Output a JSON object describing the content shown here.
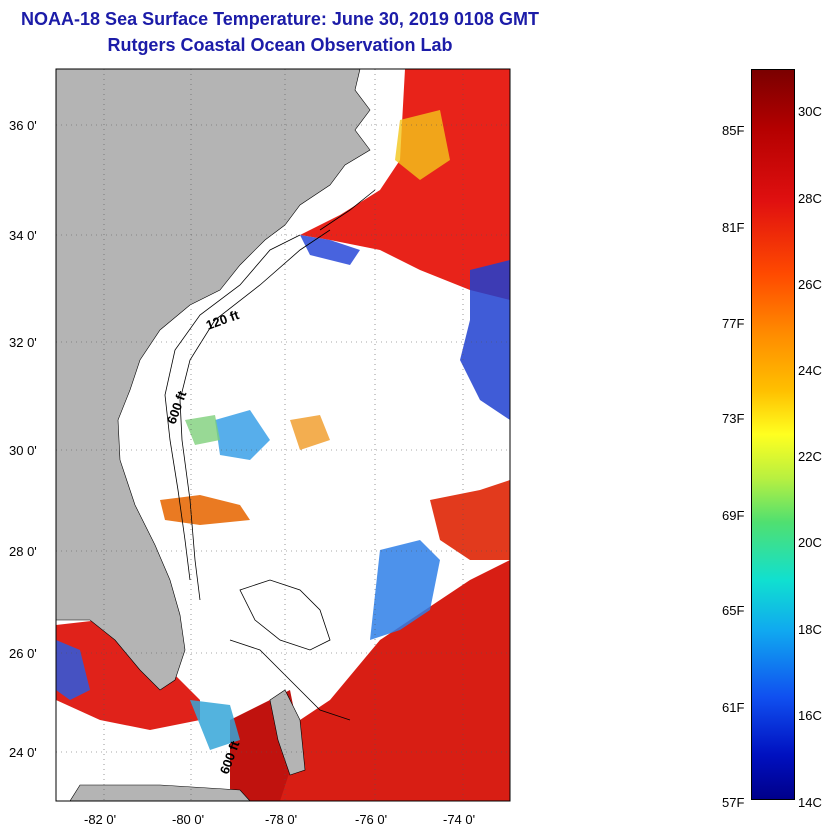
{
  "title": {
    "line1": "NOAA-18 Sea Surface Temperature:  June 30, 2019 0108 GMT",
    "line2": "Rutgers Coastal Ocean Observation Lab"
  },
  "map": {
    "lat_labels": [
      "36 0'",
      "34 0'",
      "32 0'",
      "30 0'",
      "28 0'",
      "26 0'",
      "24 0'"
    ],
    "lon_labels": [
      "-82 0'",
      "-80 0'",
      "-78 0'",
      "-76 0'",
      "-74 0'"
    ],
    "contour_labels": [
      "120 ft",
      "600 ft",
      "600 ft"
    ],
    "colors": {
      "land": "#b4b4b4",
      "cloud": "#ffffff",
      "warm": "#e8231a",
      "cool": "#1e3fd0"
    }
  },
  "colorbar": {
    "fahrenheit": [
      "85F",
      "81F",
      "77F",
      "73F",
      "69F",
      "65F",
      "61F",
      "57F"
    ],
    "celsius": [
      "30C",
      "28C",
      "26C",
      "24C",
      "22C",
      "20C",
      "18C",
      "16C",
      "14C"
    ],
    "min_c": 14,
    "max_c": 31
  }
}
